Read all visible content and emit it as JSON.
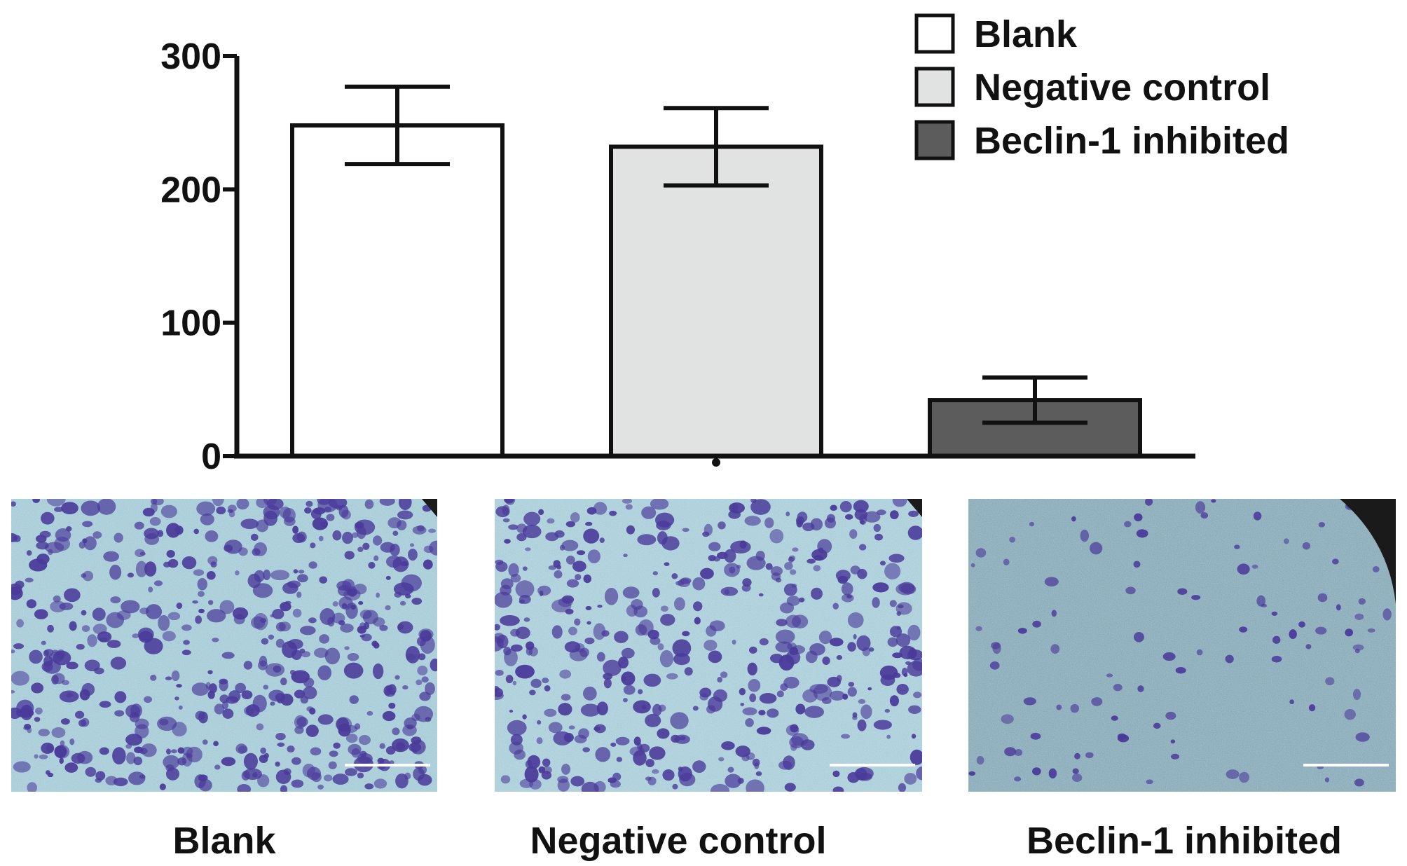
{
  "chart_data": {
    "type": "bar",
    "title": "",
    "xlabel": "",
    "ylabel": "",
    "categories": [
      "Blank",
      "Negative control",
      "Beclin-1 inhibited"
    ],
    "values": [
      248,
      232,
      42
    ],
    "error": [
      29,
      29,
      17
    ],
    "ylim": [
      0,
      300
    ],
    "yticks": [
      "0",
      "100",
      "200",
      "300"
    ],
    "grid": false,
    "legend_position": "top-right",
    "legend": [
      {
        "label": "Blank",
        "color": "#ffffff"
      },
      {
        "label": "Negative control",
        "color": "#e1e3e3"
      },
      {
        "label": "Beclin-1 inhibited",
        "color": "#5c5c5c"
      }
    ],
    "colors": [
      "#ffffff",
      "#e1e3e3",
      "#5c5c5c"
    ]
  },
  "micrographs": {
    "captions": [
      "Blank",
      "Negative control",
      "Beclin-1 inhibited"
    ],
    "cell_density": [
      1.0,
      0.85,
      0.2
    ],
    "background_colors": [
      "#9ec7d4",
      "#a3cad6",
      "#7fa4b3"
    ],
    "stain_color": "#4a3a9a"
  }
}
